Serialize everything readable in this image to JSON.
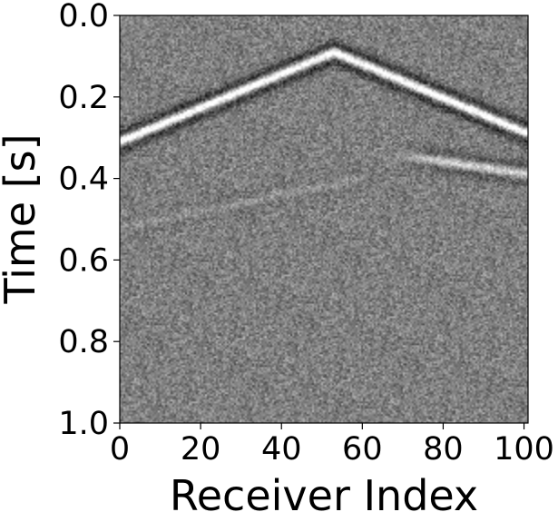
{
  "chart_data": {
    "type": "heatmap",
    "title": "",
    "xlabel": "Receiver Index",
    "ylabel": "Time [s]",
    "xlim": [
      0,
      101
    ],
    "ylim": [
      1.0,
      0.0
    ],
    "x_ticks": [
      0,
      20,
      40,
      60,
      80,
      100
    ],
    "x_tick_labels": [
      "0",
      "20",
      "40",
      "60",
      "80",
      "100"
    ],
    "y_ticks": [
      0.0,
      0.2,
      0.4,
      0.6,
      0.8,
      1.0
    ],
    "y_tick_labels": [
      "0.0",
      "0.2",
      "0.4",
      "0.6",
      "0.8",
      "1.0"
    ],
    "colormap": "gray",
    "grid": false,
    "legend": "none",
    "events": [
      {
        "apex_receiver": 53,
        "apex_time": 0.09,
        "left_end_time": 0.31,
        "right_end_time": 0.29,
        "amplitude": 1.0
      },
      {
        "start_receiver": 68,
        "start_time": 0.34,
        "end_receiver": 101,
        "end_time": 0.39,
        "amplitude": 0.55
      },
      {
        "start_receiver": 0,
        "start_time": 0.52,
        "end_receiver": 60,
        "end_time": 0.4,
        "amplitude": 0.12
      }
    ]
  }
}
